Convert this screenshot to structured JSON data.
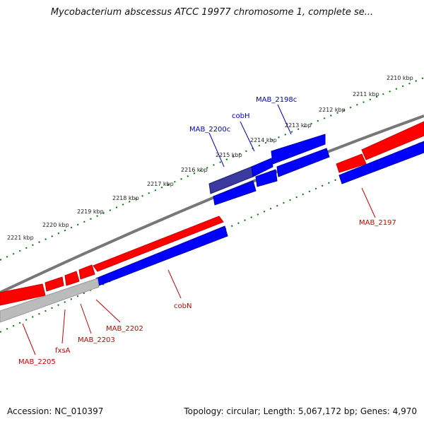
{
  "header": {
    "title": "Mycobacterium abscessus ATCC 19977 chromosome 1, complete se..."
  },
  "footer": {
    "accession": "Accession: NC_010397",
    "summary": "Topology: circular; Length: 5,067,172 bp; Genes: 4,970"
  },
  "scale_ticks": [
    "2210 kbp",
    "2211 kbp",
    "2212 kbp",
    "2213 kbp",
    "2214 kbp",
    "2215 kbp",
    "2216 kbp",
    "2217 kbp",
    "2218 kbp",
    "2219 kbp",
    "2220 kbp",
    "2221 kbp"
  ],
  "genes": [
    {
      "name": "MAB_2198c",
      "strand": "reverse",
      "color": "#0000cc"
    },
    {
      "name": "cobH",
      "strand": "reverse",
      "color": "#0000cc"
    },
    {
      "name": "MAB_2200c",
      "strand": "reverse",
      "color": "#0000cc"
    },
    {
      "name": "MAB_2197",
      "strand": "forward",
      "color": "#cc0000"
    },
    {
      "name": "cobN",
      "strand": "forward",
      "color": "#cc0000"
    },
    {
      "name": "MAB_2202",
      "strand": "forward",
      "color": "#cc0000"
    },
    {
      "name": "MAB_2203",
      "strand": "forward",
      "color": "#cc0000"
    },
    {
      "name": "fxsA",
      "strand": "forward",
      "color": "#cc0000"
    },
    {
      "name": "MAB_2205",
      "strand": "forward",
      "color": "#cc0000"
    }
  ],
  "colors": {
    "forward_strand": "#ff0000",
    "reverse_strand": "#0000ff",
    "backbone": "#808080",
    "scale": "#007700",
    "gap": "#bbbbbb"
  }
}
